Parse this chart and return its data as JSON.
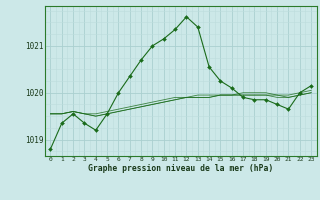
{
  "title": "Graphe pression niveau de la mer (hPa)",
  "background_color": "#cce8e8",
  "grid_color_major": "#aad0d0",
  "grid_color_minor": "#bcdcdc",
  "line_color": "#1a6b1a",
  "marker_color": "#1a6b1a",
  "xlim": [
    -0.5,
    23.5
  ],
  "ylim": [
    1018.65,
    1021.85
  ],
  "yticks": [
    1019,
    1020,
    1021
  ],
  "xticks": [
    0,
    1,
    2,
    3,
    4,
    5,
    6,
    7,
    8,
    9,
    10,
    11,
    12,
    13,
    14,
    15,
    16,
    17,
    18,
    19,
    20,
    21,
    22,
    23
  ],
  "hours": [
    0,
    1,
    2,
    3,
    4,
    5,
    6,
    7,
    8,
    9,
    10,
    11,
    12,
    13,
    14,
    15,
    16,
    17,
    18,
    19,
    20,
    21,
    22,
    23
  ],
  "band_series": [
    [
      1019.55,
      1019.55,
      1019.6,
      1019.55,
      1019.55,
      1019.6,
      1019.65,
      1019.7,
      1019.75,
      1019.8,
      1019.85,
      1019.9,
      1019.9,
      1019.95,
      1019.95,
      1019.95,
      1019.95,
      1020.0,
      1020.0,
      1020.0,
      1019.95,
      1019.95,
      1020.0,
      1020.05
    ],
    [
      1019.55,
      1019.55,
      1019.6,
      1019.55,
      1019.5,
      1019.55,
      1019.6,
      1019.65,
      1019.7,
      1019.75,
      1019.8,
      1019.85,
      1019.9,
      1019.9,
      1019.9,
      1019.95,
      1019.95,
      1019.95,
      1019.95,
      1019.95,
      1019.95,
      1019.9,
      1019.95,
      1020.0
    ],
    [
      1019.55,
      1019.55,
      1019.6,
      1019.55,
      1019.5,
      1019.55,
      1019.6,
      1019.65,
      1019.7,
      1019.75,
      1019.8,
      1019.85,
      1019.9,
      1019.9,
      1019.9,
      1019.95,
      1019.95,
      1019.95,
      1019.95,
      1019.95,
      1019.9,
      1019.9,
      1019.95,
      1020.0
    ]
  ],
  "main_series": [
    1018.8,
    1019.35,
    1019.55,
    1019.35,
    1019.2,
    1019.55,
    1020.0,
    1020.35,
    1020.7,
    1021.0,
    1021.15,
    1021.35,
    1021.62,
    1021.4,
    1020.55,
    1020.25,
    1020.1,
    1019.9,
    1019.85,
    1019.85,
    1019.75,
    1019.65,
    1020.0,
    1020.15
  ]
}
